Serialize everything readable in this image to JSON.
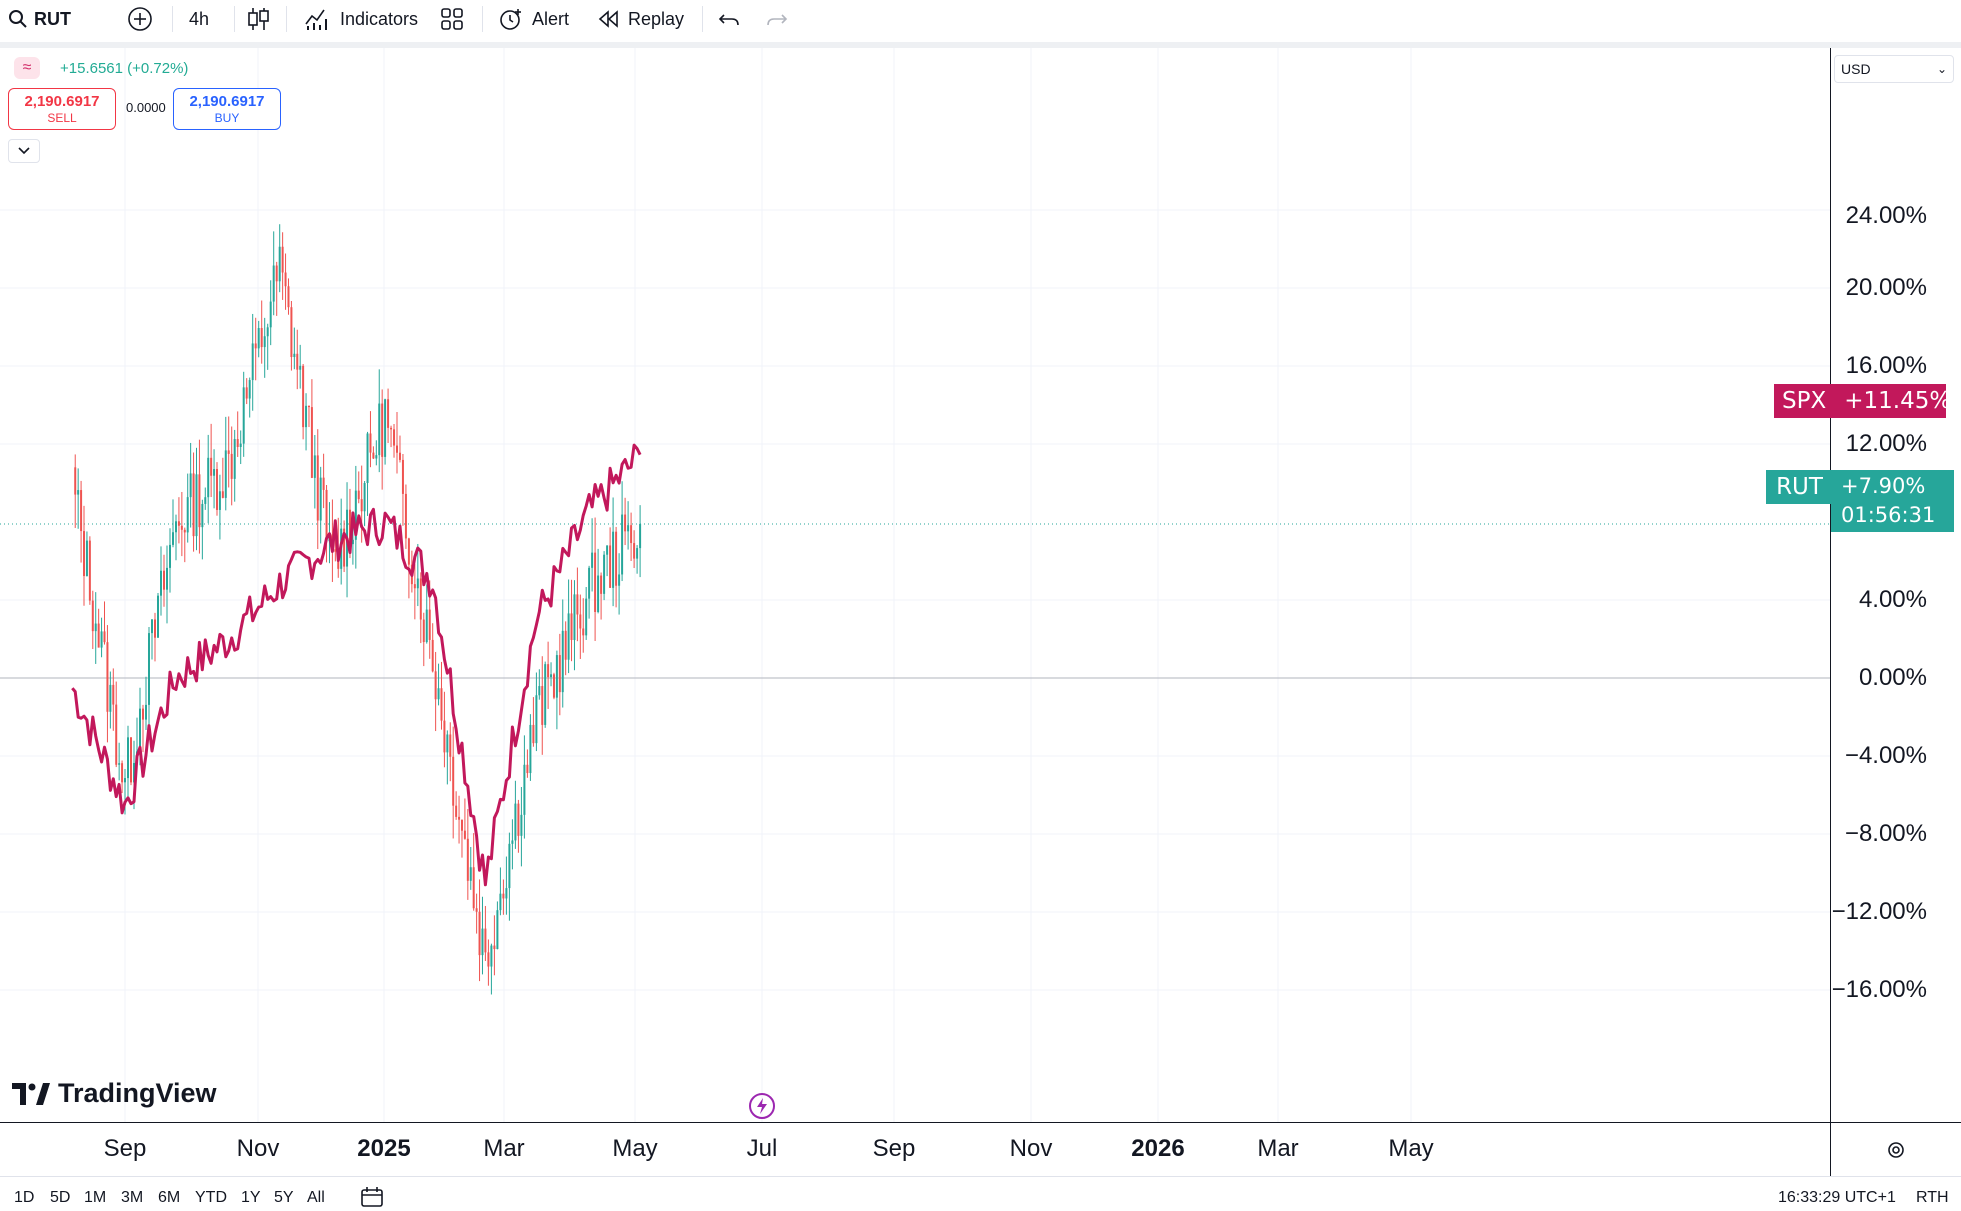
{
  "toolbar": {
    "symbol": "RUT",
    "interval": "4h",
    "indicators_label": "Indicators",
    "alert_label": "Alert",
    "replay_label": "Replay"
  },
  "legend": {
    "change": "+15.6561 (+0.72%)",
    "sell_price": "2,190.6917",
    "sell_label": "SELL",
    "spread": "0.0000",
    "buy_price": "2,190.6917",
    "buy_label": "BUY"
  },
  "price_axis": {
    "currency": "USD",
    "labels": [
      "24.00%",
      "20.00%",
      "16.00%",
      "12.00%",
      "4.00%",
      "0.00%",
      "−4.00%",
      "−8.00%",
      "−12.00%",
      "−16.00%"
    ]
  },
  "time_axis": {
    "labels": [
      "Sep",
      "Nov",
      "2025",
      "Mar",
      "May",
      "Jul",
      "Sep",
      "Nov",
      "2026",
      "Mar",
      "May"
    ]
  },
  "badges": {
    "spx_symbol": "SPX",
    "spx_value": "+11.45%",
    "rut_symbol": "RUT",
    "rut_value": "+7.90%",
    "rut_countdown": "01:56:31"
  },
  "brand": {
    "logo_text": "TradingView"
  },
  "bottom_bar": {
    "ranges": [
      "1D",
      "5D",
      "1M",
      "3M",
      "6M",
      "YTD",
      "1Y",
      "5Y",
      "All"
    ],
    "time": "16:33:29 UTC+1",
    "session": "RTH"
  },
  "colors": {
    "spx": "#c2185b",
    "rut_up": "#26a69a",
    "rut_down": "#ef5350",
    "grid": "#f0f3fa"
  },
  "chart_data": {
    "type": "line",
    "ylim": [
      -18,
      25
    ],
    "x": [
      "2024-08-01",
      "2024-09-01",
      "2024-10-01",
      "2024-11-01",
      "2024-12-01",
      "2025-01-01",
      "2025-02-01",
      "2025-03-01",
      "2025-04-01",
      "2025-05-01",
      "2025-06-01",
      "2025-07-01"
    ],
    "series": [
      {
        "name": "SPX",
        "values": [
          -0.5,
          -6.5,
          0.0,
          2.0,
          4.8,
          7.0,
          8.0,
          5.0,
          -10.5,
          3.0,
          8.5,
          11.45
        ]
      },
      {
        "name": "RUT",
        "values": [
          10.0,
          -5.5,
          8.0,
          11.0,
          21.0,
          5.5,
          13.5,
          1.0,
          -14.5,
          -2.0,
          4.5,
          7.9
        ]
      }
    ]
  }
}
